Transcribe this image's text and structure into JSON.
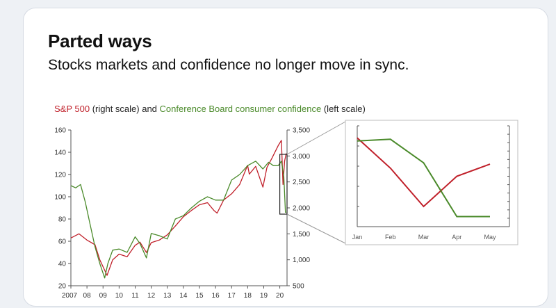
{
  "header": {
    "title": "Parted ways",
    "subtitle": "Stocks markets and confidence no longer move in sync."
  },
  "caption": {
    "sp_label": "S&P 500",
    "sp_scale": " (right scale) and ",
    "cb_label": "Conference Board consumer confidence",
    "cb_scale": " (left scale)"
  },
  "colors": {
    "sp500": "#c0202a",
    "confidence": "#4a8a2a"
  },
  "chart_data": [
    {
      "type": "line",
      "x_tick_labels": [
        "2007",
        "08",
        "09",
        "10",
        "11",
        "12",
        "13",
        "14",
        "15",
        "16",
        "17",
        "18",
        "19",
        "20"
      ],
      "left_axis": {
        "ylim": [
          20,
          160
        ],
        "ticks": [
          20,
          40,
          60,
          80,
          100,
          120,
          140,
          160
        ]
      },
      "right_axis": {
        "ylim": [
          500,
          3500
        ],
        "ticks": [
          500,
          1000,
          1500,
          2000,
          2500,
          3000,
          3500
        ],
        "tick_labels": [
          "500",
          "1,000",
          "1,500",
          "2,000",
          "2,500",
          "3,000",
          "3,500"
        ]
      },
      "series": [
        {
          "name": "S&P 500",
          "axis": "right",
          "x": [
            2007.0,
            2007.5,
            2008.0,
            2008.5,
            2008.8,
            2009.1,
            2009.25,
            2009.6,
            2010.0,
            2010.5,
            2011.0,
            2011.3,
            2011.7,
            2012.0,
            2012.5,
            2013.0,
            2013.5,
            2014.0,
            2014.5,
            2015.0,
            2015.5,
            2015.9,
            2016.1,
            2016.5,
            2017.0,
            2017.5,
            2018.0,
            2018.1,
            2018.5,
            2018.95,
            2019.2,
            2019.5,
            2019.9,
            2020.1,
            2020.2,
            2020.3,
            2020.4
          ],
          "y": [
            1420,
            1500,
            1380,
            1290,
            1000,
            800,
            700,
            1000,
            1110,
            1060,
            1280,
            1340,
            1140,
            1330,
            1380,
            1480,
            1650,
            1830,
            1950,
            2060,
            2100,
            1950,
            1900,
            2150,
            2270,
            2450,
            2820,
            2650,
            2800,
            2400,
            2780,
            2950,
            3200,
            3300,
            2450,
            2900,
            3050
          ]
        },
        {
          "name": "Conference Board consumer confidence",
          "axis": "left",
          "x": [
            2007.0,
            2007.3,
            2007.6,
            2007.9,
            2008.2,
            2008.5,
            2008.8,
            2009.1,
            2009.3,
            2009.6,
            2010.0,
            2010.5,
            2011.0,
            2011.3,
            2011.7,
            2012.0,
            2012.5,
            2013.0,
            2013.5,
            2014.0,
            2014.5,
            2015.0,
            2015.5,
            2016.0,
            2016.5,
            2017.0,
            2017.5,
            2018.0,
            2018.5,
            2018.95,
            2019.3,
            2019.6,
            2019.9,
            2020.1,
            2020.25,
            2020.35,
            2020.4
          ],
          "y": [
            110,
            108,
            111,
            95,
            75,
            55,
            40,
            27,
            40,
            52,
            53,
            50,
            64,
            58,
            45,
            67,
            65,
            62,
            80,
            83,
            90,
            96,
            100,
            97,
            97,
            115,
            120,
            128,
            132,
            125,
            131,
            128,
            128,
            132,
            118,
            86,
            86
          ]
        }
      ]
    },
    {
      "type": "line",
      "title": "",
      "categories": [
        "Jan",
        "Feb",
        "Mar",
        "Apr",
        "May"
      ],
      "series": [
        {
          "name": "S&P 500",
          "values": [
            3240,
            3090,
            2900,
            3050,
            3110
          ]
        },
        {
          "name": "Conference Board consumer confidence",
          "values": [
            131,
            132,
            118,
            86,
            86
          ]
        }
      ],
      "left_ylim": [
        80,
        140
      ],
      "right_ylim": [
        2800,
        3300
      ]
    }
  ]
}
